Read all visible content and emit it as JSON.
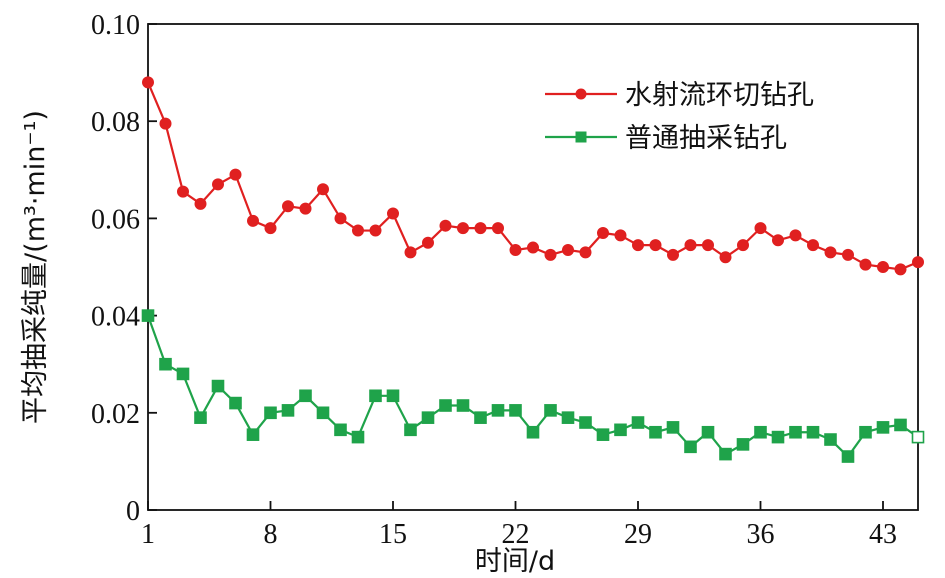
{
  "chart_data": {
    "type": "line",
    "xlabel": "时间/d",
    "ylabel": "平均抽采纯量/(m³·min⁻¹)",
    "xlim": [
      1,
      45
    ],
    "ylim": [
      0,
      0.1
    ],
    "x_ticks": [
      1,
      8,
      15,
      22,
      29,
      36,
      43
    ],
    "y_ticks": [
      {
        "value": 0,
        "label": "0"
      },
      {
        "value": 0.02,
        "label": "0.02"
      },
      {
        "value": 0.04,
        "label": "0.04"
      },
      {
        "value": 0.06,
        "label": "0.06"
      },
      {
        "value": 0.08,
        "label": "0.08"
      },
      {
        "value": 0.1,
        "label": "0.10"
      }
    ],
    "grid": false,
    "legend_position": "top-right",
    "x": [
      1,
      2,
      3,
      4,
      5,
      6,
      7,
      8,
      9,
      10,
      11,
      12,
      13,
      14,
      15,
      16,
      17,
      18,
      19,
      20,
      21,
      22,
      23,
      24,
      25,
      26,
      27,
      28,
      29,
      30,
      31,
      32,
      33,
      34,
      35,
      36,
      37,
      38,
      39,
      40,
      41,
      42,
      43,
      44,
      45
    ],
    "series": [
      {
        "name": "水射流环切钻孔",
        "color": "#e02020",
        "marker": "circle",
        "values": [
          0.088,
          0.0795,
          0.0655,
          0.063,
          0.067,
          0.069,
          0.0595,
          0.058,
          0.0625,
          0.062,
          0.066,
          0.06,
          0.0575,
          0.0575,
          0.061,
          0.053,
          0.055,
          0.0585,
          0.058,
          0.058,
          0.058,
          0.0535,
          0.054,
          0.0525,
          0.0535,
          0.053,
          0.057,
          0.0565,
          0.0545,
          0.0545,
          0.0525,
          0.0545,
          0.0545,
          0.052,
          0.0545,
          0.058,
          0.0555,
          0.0565,
          0.0545,
          0.053,
          0.0525,
          0.0505,
          0.05,
          0.0495,
          0.051
        ]
      },
      {
        "name": "普通抽采钻孔",
        "color": "#1fa34a",
        "marker": "square",
        "values": [
          0.04,
          0.03,
          0.028,
          0.019,
          0.0255,
          0.022,
          0.0155,
          0.02,
          0.0205,
          0.0235,
          0.02,
          0.0165,
          0.015,
          0.0235,
          0.0235,
          0.0165,
          0.019,
          0.0215,
          0.0215,
          0.019,
          0.0205,
          0.0205,
          0.016,
          0.0205,
          0.019,
          0.018,
          0.0155,
          0.0165,
          0.018,
          0.016,
          0.017,
          0.013,
          0.016,
          0.0115,
          0.0135,
          0.016,
          0.015,
          0.016,
          0.016,
          0.0145,
          0.011,
          0.016,
          0.017,
          0.0175,
          0.015
        ]
      }
    ]
  }
}
